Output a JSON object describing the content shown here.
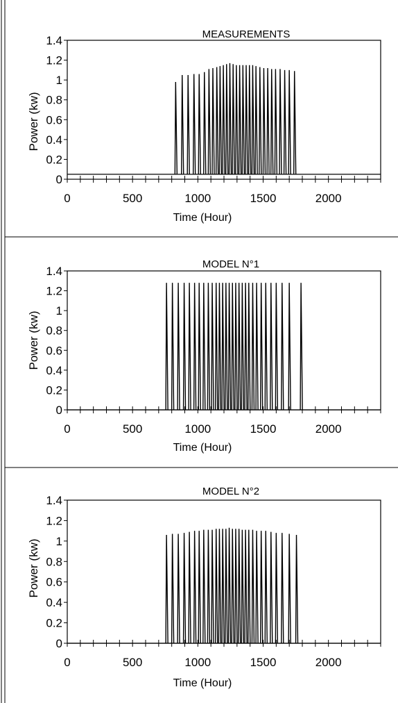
{
  "chart_data": [
    {
      "type": "line",
      "title": "MEASUREMENTS",
      "xlabel": "Time (Hour)",
      "ylabel": "Power (kw)",
      "xlim": [
        0,
        2400
      ],
      "ylim": [
        0,
        1.4
      ],
      "xticks": [
        "0",
        "500",
        "1000",
        "1500",
        "2000"
      ],
      "yticks": [
        "0",
        "0.2",
        "0.4",
        "0.6",
        "0.8",
        "1",
        "1.2",
        "1.4"
      ],
      "grid": false,
      "baseline": 0.05,
      "peaks": [
        {
          "x": 830,
          "y": 0.98
        },
        {
          "x": 880,
          "y": 1.05
        },
        {
          "x": 925,
          "y": 1.05
        },
        {
          "x": 970,
          "y": 1.06
        },
        {
          "x": 1010,
          "y": 1.06
        },
        {
          "x": 1050,
          "y": 1.08
        },
        {
          "x": 1085,
          "y": 1.11
        },
        {
          "x": 1115,
          "y": 1.12
        },
        {
          "x": 1145,
          "y": 1.13
        },
        {
          "x": 1170,
          "y": 1.14
        },
        {
          "x": 1195,
          "y": 1.15
        },
        {
          "x": 1220,
          "y": 1.16
        },
        {
          "x": 1245,
          "y": 1.17
        },
        {
          "x": 1270,
          "y": 1.16
        },
        {
          "x": 1295,
          "y": 1.15
        },
        {
          "x": 1320,
          "y": 1.15
        },
        {
          "x": 1345,
          "y": 1.15
        },
        {
          "x": 1370,
          "y": 1.15
        },
        {
          "x": 1395,
          "y": 1.15
        },
        {
          "x": 1420,
          "y": 1.15
        },
        {
          "x": 1445,
          "y": 1.14
        },
        {
          "x": 1475,
          "y": 1.13
        },
        {
          "x": 1505,
          "y": 1.12
        },
        {
          "x": 1535,
          "y": 1.12
        },
        {
          "x": 1565,
          "y": 1.11
        },
        {
          "x": 1595,
          "y": 1.11
        },
        {
          "x": 1630,
          "y": 1.11
        },
        {
          "x": 1665,
          "y": 1.1
        },
        {
          "x": 1700,
          "y": 1.1
        },
        {
          "x": 1740,
          "y": 1.09
        }
      ]
    },
    {
      "type": "line",
      "title": "MODEL N°1",
      "xlabel": "Time (Hour)",
      "ylabel": "Power (kw)",
      "xlim": [
        0,
        2400
      ],
      "ylim": [
        0,
        1.4
      ],
      "xticks": [
        "0",
        "500",
        "1000",
        "1500",
        "2000"
      ],
      "yticks": [
        "0",
        "0.2",
        "0.4",
        "0.6",
        "0.8",
        "1",
        "1.2",
        "1.4"
      ],
      "grid": false,
      "baseline": 0.0,
      "peaks": [
        {
          "x": 760,
          "y": 1.28
        },
        {
          "x": 805,
          "y": 1.28
        },
        {
          "x": 850,
          "y": 1.28
        },
        {
          "x": 895,
          "y": 1.28
        },
        {
          "x": 935,
          "y": 1.28
        },
        {
          "x": 975,
          "y": 1.28
        },
        {
          "x": 1010,
          "y": 1.28
        },
        {
          "x": 1045,
          "y": 1.28
        },
        {
          "x": 1080,
          "y": 1.28
        },
        {
          "x": 1110,
          "y": 1.28
        },
        {
          "x": 1140,
          "y": 1.28
        },
        {
          "x": 1165,
          "y": 1.28
        },
        {
          "x": 1190,
          "y": 1.28
        },
        {
          "x": 1215,
          "y": 1.28
        },
        {
          "x": 1240,
          "y": 1.28
        },
        {
          "x": 1265,
          "y": 1.28
        },
        {
          "x": 1290,
          "y": 1.28
        },
        {
          "x": 1315,
          "y": 1.28
        },
        {
          "x": 1340,
          "y": 1.28
        },
        {
          "x": 1365,
          "y": 1.28
        },
        {
          "x": 1390,
          "y": 1.28
        },
        {
          "x": 1420,
          "y": 1.28
        },
        {
          "x": 1450,
          "y": 1.28
        },
        {
          "x": 1485,
          "y": 1.28
        },
        {
          "x": 1520,
          "y": 1.28
        },
        {
          "x": 1560,
          "y": 1.28
        },
        {
          "x": 1600,
          "y": 1.28
        },
        {
          "x": 1645,
          "y": 1.28
        },
        {
          "x": 1700,
          "y": 1.28
        },
        {
          "x": 1790,
          "y": 1.28
        }
      ]
    },
    {
      "type": "line",
      "title": "MODEL N°2",
      "xlabel": "Time (Hour)",
      "ylabel": "Power (kw)",
      "xlim": [
        0,
        2400
      ],
      "ylim": [
        0,
        1.4
      ],
      "xticks": [
        "0",
        "500",
        "1000",
        "1500",
        "2000"
      ],
      "yticks": [
        "0",
        "0.2",
        "0.4",
        "0.6",
        "0.8",
        "1",
        "1.2",
        "1.4"
      ],
      "grid": false,
      "baseline": 0.0,
      "peaks": [
        {
          "x": 760,
          "y": 1.06
        },
        {
          "x": 805,
          "y": 1.07
        },
        {
          "x": 850,
          "y": 1.07
        },
        {
          "x": 895,
          "y": 1.08
        },
        {
          "x": 935,
          "y": 1.09
        },
        {
          "x": 975,
          "y": 1.1
        },
        {
          "x": 1010,
          "y": 1.1
        },
        {
          "x": 1045,
          "y": 1.11
        },
        {
          "x": 1080,
          "y": 1.11
        },
        {
          "x": 1110,
          "y": 1.11
        },
        {
          "x": 1140,
          "y": 1.12
        },
        {
          "x": 1165,
          "y": 1.12
        },
        {
          "x": 1190,
          "y": 1.12
        },
        {
          "x": 1215,
          "y": 1.12
        },
        {
          "x": 1240,
          "y": 1.13
        },
        {
          "x": 1265,
          "y": 1.12
        },
        {
          "x": 1290,
          "y": 1.12
        },
        {
          "x": 1315,
          "y": 1.12
        },
        {
          "x": 1340,
          "y": 1.11
        },
        {
          "x": 1365,
          "y": 1.11
        },
        {
          "x": 1390,
          "y": 1.11
        },
        {
          "x": 1420,
          "y": 1.11
        },
        {
          "x": 1450,
          "y": 1.1
        },
        {
          "x": 1485,
          "y": 1.1
        },
        {
          "x": 1520,
          "y": 1.1
        },
        {
          "x": 1560,
          "y": 1.09
        },
        {
          "x": 1600,
          "y": 1.08
        },
        {
          "x": 1645,
          "y": 1.08
        },
        {
          "x": 1700,
          "y": 1.07
        },
        {
          "x": 1755,
          "y": 1.06
        }
      ]
    }
  ]
}
